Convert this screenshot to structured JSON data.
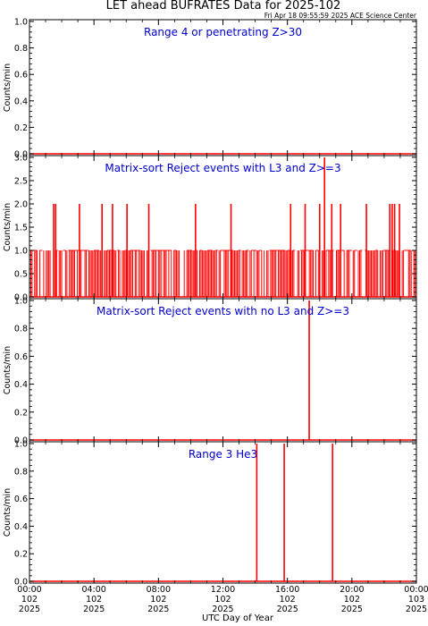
{
  "page": {
    "title": "LET ahead BUFRATES Data for 2025-102",
    "timestamp": "Fri Apr 18 09:55:59 2025 ACE Science Center",
    "xlabel": "UTC Day of Year"
  },
  "x_axis": {
    "ticks": [
      {
        "time": "00:00",
        "doy": "102",
        "year": "2025",
        "hour": 0
      },
      {
        "time": "04:00",
        "doy": "102",
        "year": "2025",
        "hour": 4
      },
      {
        "time": "08:00",
        "doy": "102",
        "year": "2025",
        "hour": 8
      },
      {
        "time": "12:00",
        "doy": "102",
        "year": "2025",
        "hour": 12
      },
      {
        "time": "16:00",
        "doy": "102",
        "year": "2025",
        "hour": 16
      },
      {
        "time": "20:00",
        "doy": "102",
        "year": "2025",
        "hour": 20
      },
      {
        "time": "00:00",
        "doy": "103",
        "year": "2025",
        "hour": 24
      }
    ]
  },
  "colors": {
    "data": "#ff0000",
    "panel_title": "#0000cc",
    "axes": "#000000"
  },
  "chart_data": [
    {
      "type": "line",
      "title": "Range 4 or   penetrating Z>30",
      "ylabel": "Counts/min",
      "ylim": [
        0,
        1.0
      ],
      "yticks": [
        "0.0",
        "0.2",
        "0.4",
        "0.6",
        "0.8",
        "1.0"
      ],
      "xlim": [
        0,
        24
      ],
      "baseline": 0,
      "points": []
    },
    {
      "type": "line",
      "title": "Matrix-sort Reject events with L3 and Z>=3",
      "ylabel": "Counts/min",
      "ylim": [
        0,
        3.0
      ],
      "yticks": [
        "0.0",
        "0.5",
        "1.0",
        "1.5",
        "2.0",
        "2.5",
        "3.0"
      ],
      "xlim": [
        0,
        24
      ],
      "baseline": 0,
      "spike_fill": {
        "value": 1,
        "start": 0,
        "end": 24,
        "step": 0.08
      },
      "points": [
        [
          1.5,
          2
        ],
        [
          1.62,
          2
        ],
        [
          3.1,
          2
        ],
        [
          4.5,
          2
        ],
        [
          5.15,
          2
        ],
        [
          6.05,
          2
        ],
        [
          7.4,
          2
        ],
        [
          10.3,
          2
        ],
        [
          12.5,
          2
        ],
        [
          16.2,
          2
        ],
        [
          17.1,
          2
        ],
        [
          18.0,
          2
        ],
        [
          18.3,
          3
        ],
        [
          18.75,
          2
        ],
        [
          19.3,
          2
        ],
        [
          20.9,
          2
        ],
        [
          22.35,
          2
        ],
        [
          22.5,
          2
        ],
        [
          22.65,
          2
        ],
        [
          22.95,
          2
        ]
      ]
    },
    {
      "type": "line",
      "title": "Matrix-sort Reject events with no L3 and Z>=3",
      "ylabel": "Counts/min",
      "ylim": [
        0,
        1.0
      ],
      "yticks": [
        "0.0",
        "0.2",
        "0.4",
        "0.6",
        "0.8",
        "1.0"
      ],
      "xlim": [
        0,
        24
      ],
      "baseline": 0,
      "points": [
        [
          17.35,
          1
        ]
      ]
    },
    {
      "type": "line",
      "title": "Range 3 He3",
      "ylabel": "Counts/min",
      "ylim": [
        0,
        1.0
      ],
      "yticks": [
        "0.0",
        "0.2",
        "0.4",
        "0.6",
        "0.8",
        "1.0"
      ],
      "xlim": [
        0,
        24
      ],
      "baseline": 0,
      "points": [
        [
          14.1,
          1
        ],
        [
          15.8,
          1
        ],
        [
          18.8,
          1
        ]
      ]
    }
  ]
}
